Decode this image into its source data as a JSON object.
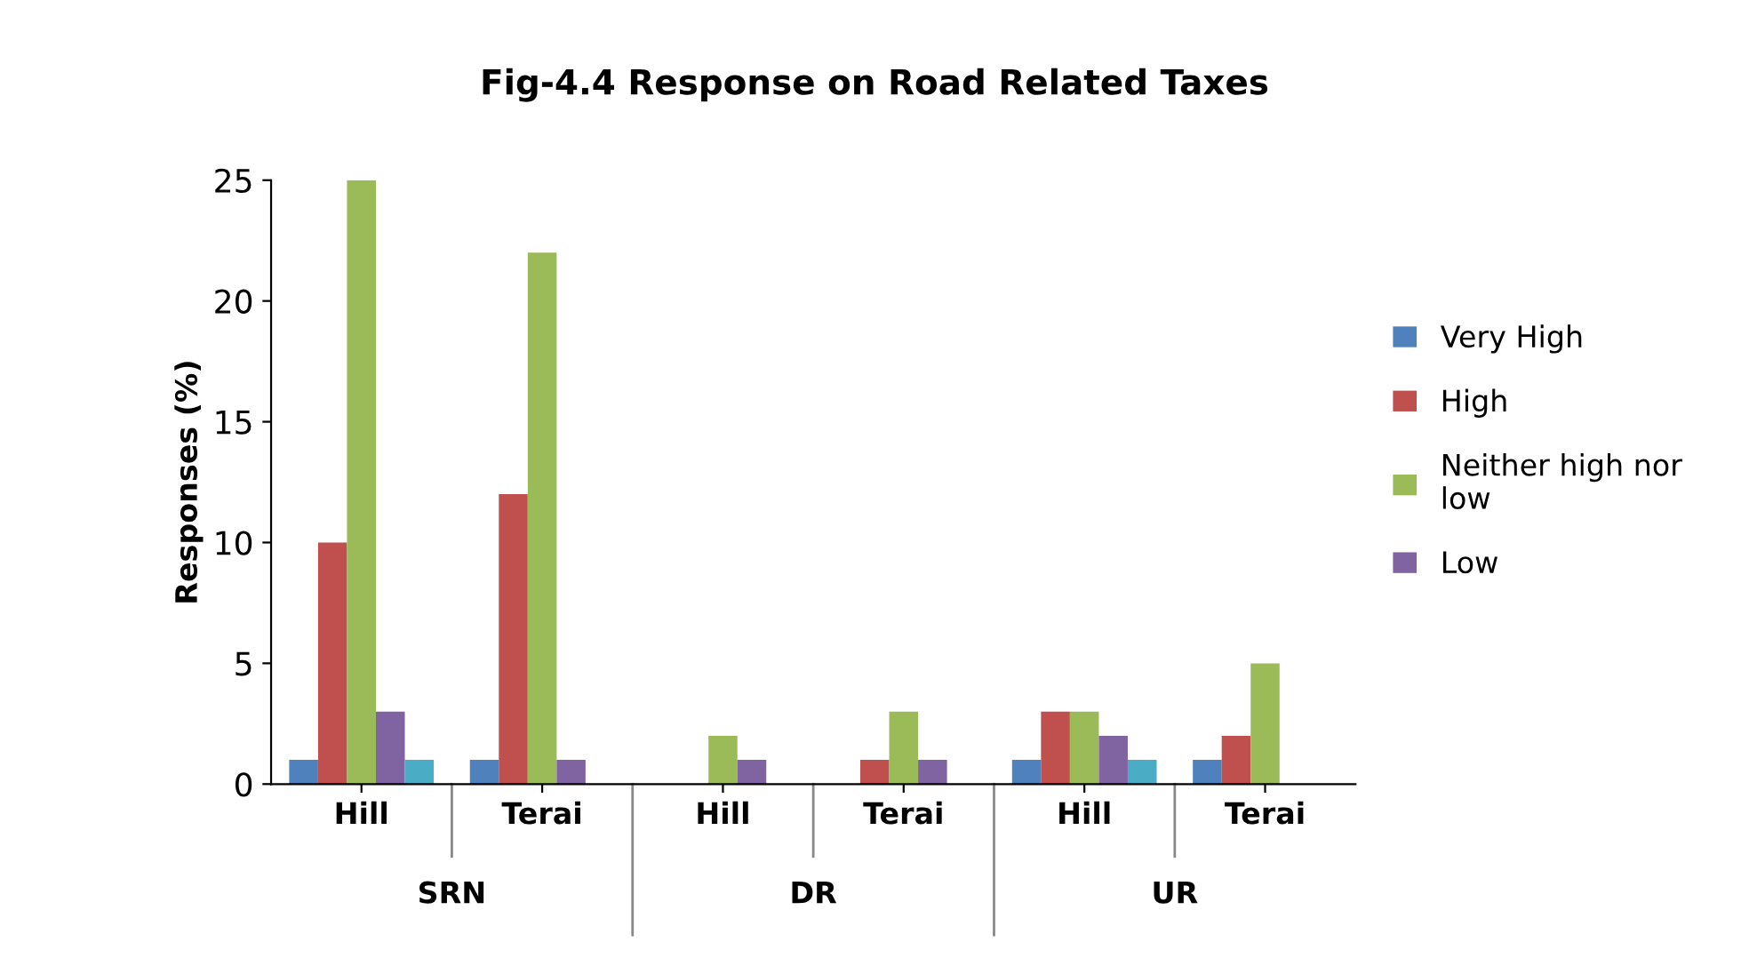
{
  "chart_data": {
    "type": "bar",
    "title": "Fig-4.4 Response on Road Related Taxes",
    "ylabel": "Responses (%)",
    "categories": [
      "Hill",
      "Terai",
      "Hill",
      "Terai",
      "Hill",
      "Terai"
    ],
    "annotations": [
      "SRN",
      "DR",
      "UR"
    ],
    "series": [
      {
        "name": "Very High",
        "color": "#4f81bd",
        "values": [
          1,
          1,
          0,
          0,
          1,
          1
        ]
      },
      {
        "name": "High",
        "color": "#c0504d",
        "values": [
          10,
          12,
          0,
          1,
          3,
          2
        ]
      },
      {
        "name": "Neither high nor\nlow",
        "color": "#9bbb59",
        "values": [
          25,
          22,
          2,
          3,
          3,
          5
        ]
      },
      {
        "name": "Low",
        "color": "#8064a2",
        "values": [
          3,
          1,
          1,
          1,
          2,
          0
        ]
      },
      {
        "color": "#4bacc6",
        "values": [
          1,
          0,
          0,
          0,
          1,
          0
        ]
      }
    ],
    "ylim": [
      0,
      25
    ],
    "yticks": [
      0,
      5,
      10,
      15,
      20,
      25
    ],
    "grid": false,
    "legend": "right"
  }
}
